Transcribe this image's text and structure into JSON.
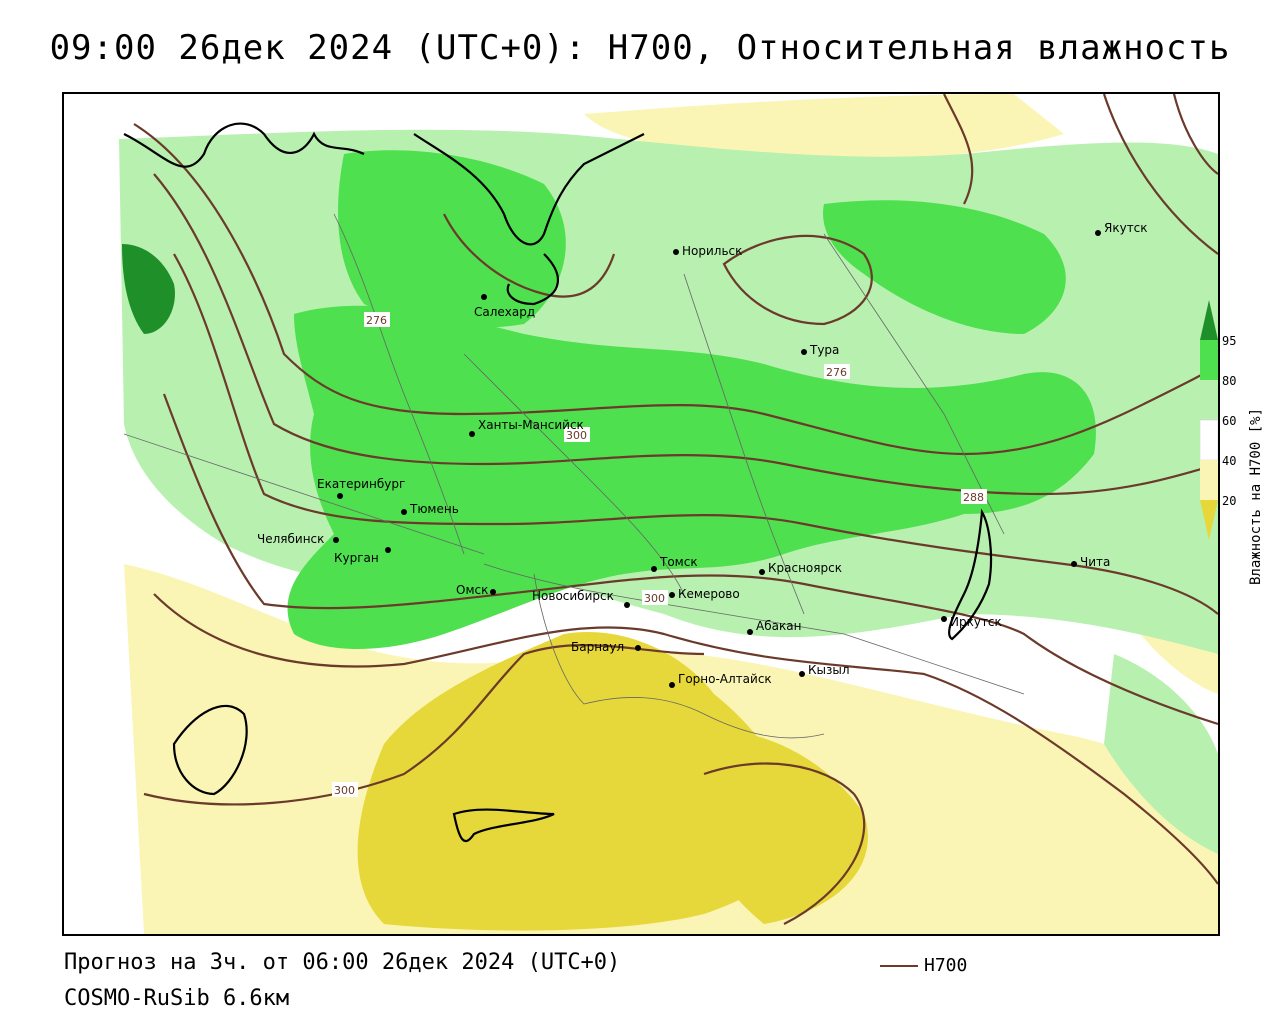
{
  "title": "09:00 26дек 2024 (UTC+0): H700, Относительная влажность",
  "footer": {
    "forecast": "Прогноз на 3ч. от 06:00 26дек 2024 (UTC+0)",
    "model": "COSMO-RuSib 6.6км"
  },
  "legend": {
    "h700_label": "H700"
  },
  "colorbar": {
    "title": "Влажность на H700 [%]",
    "ticks": [
      "95",
      "80",
      "60",
      "40",
      "20"
    ],
    "colors": {
      "very_high": "#1f8f2a",
      "high": "#4ee04e",
      "medium": "#b8f0b0",
      "neutral": "#ffffff",
      "low": "#fbf5b5",
      "very_low": "#e6d83a"
    }
  },
  "contour_color": "#6b3a2a",
  "contour_labels": [
    "276",
    "276",
    "288",
    "300",
    "300",
    "300"
  ],
  "cities": [
    "Якутск",
    "Норильск",
    "Салехард",
    "Тура",
    "Ханты-Мансийск",
    "Екатеринбург",
    "Тюмень",
    "Челябинск",
    "Курган",
    "Омск",
    "Новосибирск",
    "Томск",
    "Кемерово",
    "Красноярск",
    "Иркутск",
    "Чита",
    "Абакан",
    "Барнаул",
    "Горно-Алтайск",
    "Кызыл"
  ]
}
